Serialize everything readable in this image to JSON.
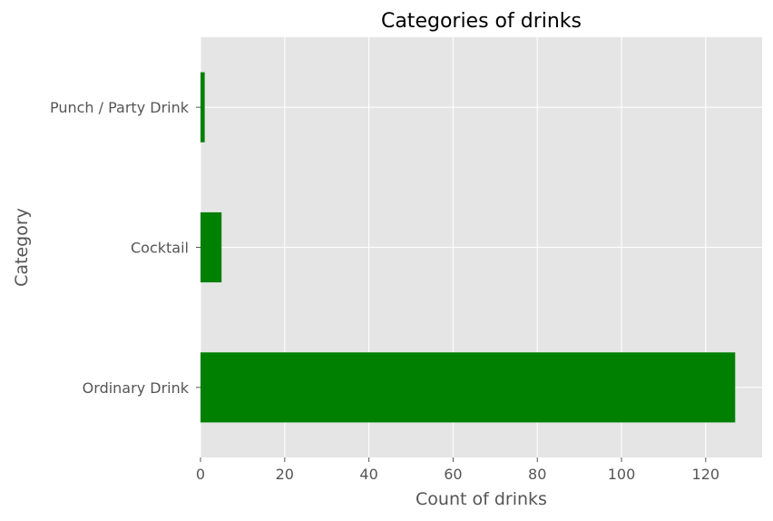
{
  "chart_data": {
    "type": "bar",
    "orientation": "horizontal",
    "title": "Categories of drinks",
    "xlabel": "Count of drinks",
    "ylabel": "Category",
    "categories": [
      "Ordinary Drink",
      "Cocktail",
      "Punch / Party Drink"
    ],
    "values": [
      127,
      5,
      1
    ],
    "xlim": [
      0,
      133.4
    ],
    "xticks": [
      "0",
      "20",
      "40",
      "60",
      "80",
      "100",
      "120"
    ],
    "grid": true,
    "style": "ggplot",
    "bar_color": "#008000",
    "background_color": "#e5e5e5",
    "grid_color": "#ffffff"
  }
}
